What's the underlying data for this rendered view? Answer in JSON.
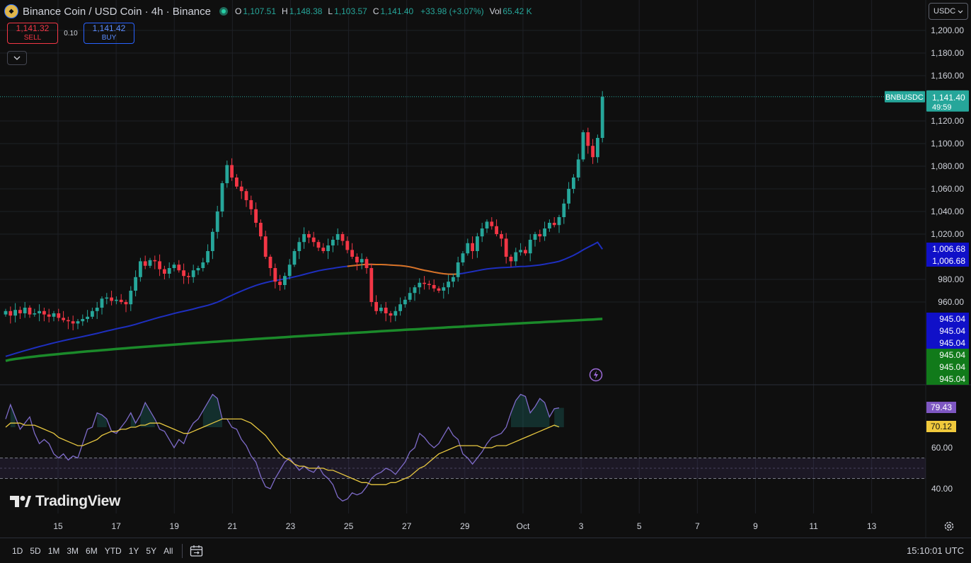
{
  "header": {
    "title": "Binance Coin / USD Coin · 4h · Binance",
    "ohlc": [
      {
        "k": "O",
        "v": "1,107.51"
      },
      {
        "k": "H",
        "v": "1,148.38"
      },
      {
        "k": "L",
        "v": "1,103.57"
      },
      {
        "k": "C",
        "v": "1,141.40"
      }
    ],
    "change": "+33.98 (+3.07%)",
    "vol_label": "Vol",
    "vol_value": "65.42 K"
  },
  "trade": {
    "sell_price": "1,141.32",
    "sell_label": "SELL",
    "spread": "0.10",
    "buy_price": "1,141.42",
    "buy_label": "BUY"
  },
  "currency_select": "USDC",
  "branding": "TradingView",
  "bottom": {
    "ranges": [
      "1D",
      "5D",
      "1M",
      "3M",
      "6M",
      "YTD",
      "1Y",
      "5Y",
      "All"
    ],
    "clock": "15:10:01 UTC"
  },
  "colors": {
    "up": "#26a69a",
    "down": "#f23645",
    "ma_blue": "#1e2fbf",
    "ma_green": "#1b8a2a",
    "ma_orange": "#d9731f",
    "rsi": "#7e6bc9",
    "rsi_ma": "#e8c840"
  },
  "chart_data": {
    "type": "candlestick",
    "symbol_label": "BNBUSDC",
    "last_price": "1,141.40",
    "countdown": "49:59",
    "y_ticks": [
      "1,200.00",
      "1,180.00",
      "1,160.00",
      "1,120.00",
      "1,100.00",
      "1,080.00",
      "1,060.00",
      "1,040.00",
      "1,020.00",
      "980.00",
      "960.00"
    ],
    "y_tick_values": [
      1200,
      1180,
      1160,
      1120,
      1100,
      1080,
      1060,
      1040,
      1020,
      980,
      960
    ],
    "ylim": [
      918,
      1220
    ],
    "x_ticks": [
      {
        "label": "15",
        "day": 15
      },
      {
        "label": "17",
        "day": 17
      },
      {
        "label": "19",
        "day": 19
      },
      {
        "label": "21",
        "day": 21
      },
      {
        "label": "23",
        "day": 23
      },
      {
        "label": "25",
        "day": 25
      },
      {
        "label": "27",
        "day": 27
      },
      {
        "label": "29",
        "day": 29
      },
      {
        "label": "Oct",
        "day": 31
      },
      {
        "label": "3",
        "day": 33
      },
      {
        "label": "5",
        "day": 35
      },
      {
        "label": "7",
        "day": 37
      },
      {
        "label": "9",
        "day": 39
      },
      {
        "label": "11",
        "day": 41
      },
      {
        "label": "13",
        "day": 43
      }
    ],
    "ma_labels": [
      {
        "text": "1,006.68",
        "bg": "#1010c8"
      },
      {
        "text": "1,006.68",
        "bg": "#1010c8"
      },
      {
        "text": "945.04",
        "bg": "#1010c8"
      },
      {
        "text": "945.04",
        "bg": "#1010c8"
      },
      {
        "text": "945.04",
        "bg": "#1010c8"
      },
      {
        "text": "945.04",
        "bg": "#117a1a"
      },
      {
        "text": "945.04",
        "bg": "#117a1a"
      },
      {
        "text": "945.04",
        "bg": "#117a1a"
      }
    ],
    "close": [
      952,
      948,
      953,
      950,
      955,
      949,
      950,
      952,
      949,
      947,
      950,
      946,
      944,
      943,
      941,
      943,
      945,
      947,
      952,
      955,
      963,
      964,
      961,
      962,
      960,
      958,
      970,
      982,
      996,
      992,
      997,
      996,
      989,
      985,
      990,
      993,
      988,
      983,
      982,
      988,
      990,
      995,
      1005,
      1022,
      1040,
      1065,
      1081,
      1070,
      1062,
      1058,
      1050,
      1042,
      1030,
      1018,
      1000,
      990,
      978,
      975,
      983,
      993,
      1005,
      1013,
      1020,
      1017,
      1013,
      1008,
      1005,
      1010,
      1015,
      1020,
      1014,
      1006,
      1000,
      995,
      998,
      990,
      960,
      952,
      955,
      950,
      948,
      952,
      958,
      962,
      968,
      973,
      977,
      976,
      975,
      972,
      970,
      973,
      978,
      982,
      995,
      1003,
      1012,
      1005,
      1018,
      1025,
      1031,
      1027,
      1020,
      1016,
      1000,
      996,
      1004,
      1006,
      1003,
      1015,
      1020,
      1018,
      1025,
      1030,
      1028,
      1035,
      1047,
      1060,
      1070,
      1086,
      1110,
      1098,
      1088,
      1105,
      1141.4
    ],
    "rsi": {
      "ylim": [
        32,
        88
      ],
      "ticks": [
        "60.00",
        "40.00"
      ],
      "tick_values": [
        60,
        40
      ],
      "band": [
        45,
        55
      ],
      "last": "79.43",
      "ma_last": "70.12",
      "values": [
        74,
        81,
        75,
        69,
        72,
        75,
        67,
        62,
        64,
        62,
        57,
        55,
        57,
        54,
        56,
        55,
        62,
        69,
        70,
        77,
        76,
        74,
        68,
        67,
        70,
        73,
        77,
        72,
        76,
        82,
        78,
        74,
        69,
        68,
        64,
        60,
        64,
        62,
        68,
        72,
        74,
        78,
        82,
        86,
        84,
        74,
        74,
        70,
        69,
        64,
        61,
        56,
        53,
        46,
        41,
        40,
        45,
        49,
        53,
        55,
        52,
        49,
        51,
        49,
        48,
        51,
        47,
        45,
        42,
        36,
        34,
        35,
        38,
        37,
        38,
        41,
        45,
        47,
        48,
        50,
        49,
        47,
        50,
        53,
        58,
        60,
        67,
        65,
        62,
        60,
        62,
        66,
        70,
        66,
        64,
        57,
        55,
        52,
        55,
        58,
        62,
        65,
        66,
        67,
        70,
        77,
        83,
        86,
        85,
        77,
        80,
        84,
        82,
        75,
        79,
        79.43
      ],
      "ma_values": [
        70,
        72,
        72,
        72,
        71,
        71,
        71,
        70,
        69,
        68,
        67,
        65,
        64,
        63,
        62,
        61,
        61,
        62,
        63,
        64,
        66,
        67,
        68,
        68,
        69,
        69,
        70,
        70,
        71,
        71,
        72,
        72,
        72,
        71,
        70,
        69,
        68,
        67,
        67,
        68,
        69,
        70,
        71,
        72,
        73,
        74,
        74,
        74,
        74,
        74,
        73,
        72,
        70,
        68,
        66,
        63,
        60,
        57,
        55,
        54,
        52,
        51,
        51,
        50,
        50,
        50,
        50,
        49,
        49,
        48,
        47,
        46,
        45,
        44,
        43,
        43,
        42,
        42,
        42,
        42,
        43,
        43,
        44,
        45,
        46,
        48,
        50,
        51,
        53,
        55,
        57,
        58,
        59,
        60,
        61,
        61,
        61,
        61,
        61,
        60,
        60,
        60,
        61,
        61,
        61,
        62,
        63,
        64,
        65,
        66,
        67,
        68,
        69,
        70,
        71,
        70.12
      ]
    }
  }
}
